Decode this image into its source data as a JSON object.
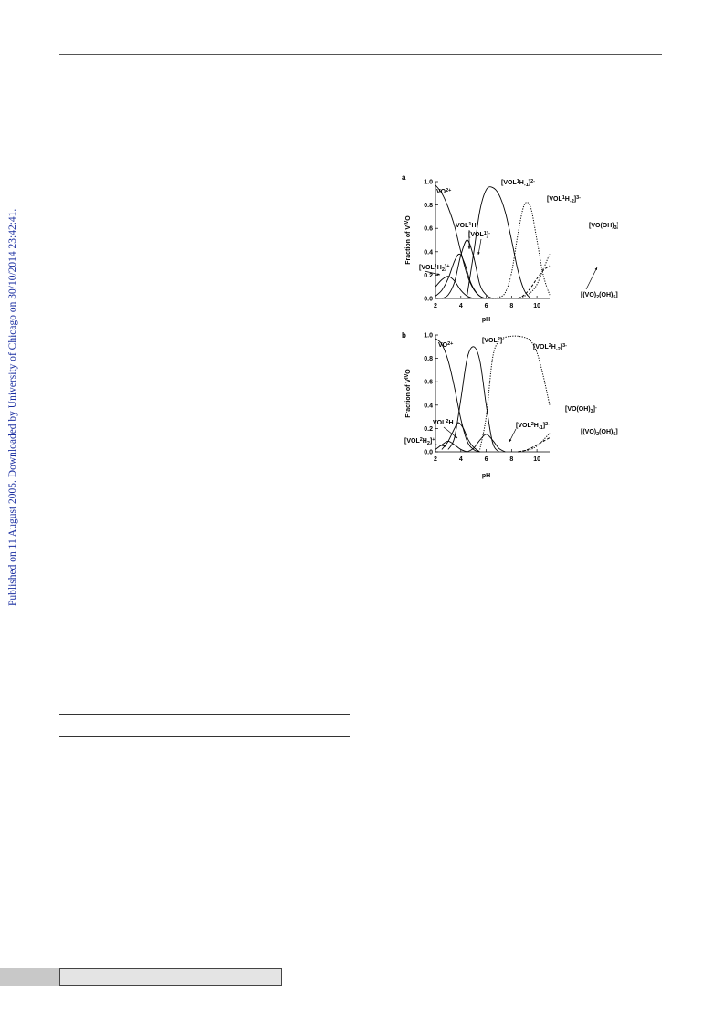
{
  "watermark": "Published on 11 August 2005. Downloaded by University of Chicago on 30/10/2014 23:42:41.",
  "chart_data": [
    {
      "panel": "a",
      "type": "line",
      "xlabel": "pH",
      "ylabel_parts": [
        "Fraction of V",
        "IV",
        "O"
      ],
      "xlim": [
        2,
        11
      ],
      "ylim": [
        0,
        1.0
      ],
      "xticks": [
        "2",
        "4",
        "6",
        "8",
        "10"
      ],
      "yticks": [
        "0.0",
        "0.2",
        "0.4",
        "0.6",
        "0.8",
        "1.0"
      ],
      "series": [
        {
          "name": "VO2+",
          "style": "solid",
          "x": [
            2.0,
            2.5,
            3.0,
            3.5,
            4.0,
            4.5,
            5.0,
            5.5,
            6.0
          ],
          "y": [
            0.97,
            0.9,
            0.78,
            0.62,
            0.4,
            0.2,
            0.08,
            0.02,
            0.0
          ]
        },
        {
          "name": "[VOL1H2]+",
          "style": "solid",
          "x": [
            2.0,
            2.5,
            3.0,
            3.5,
            4.0,
            4.5,
            5.0
          ],
          "y": [
            0.1,
            0.16,
            0.19,
            0.15,
            0.07,
            0.02,
            0.0
          ]
        },
        {
          "name": "VOL1H",
          "style": "solid",
          "x": [
            2.0,
            2.5,
            3.0,
            3.5,
            3.9,
            4.3,
            4.8,
            5.3,
            5.8
          ],
          "y": [
            0.02,
            0.07,
            0.17,
            0.32,
            0.38,
            0.3,
            0.13,
            0.04,
            0.0
          ]
        },
        {
          "name": "[VOL1]-",
          "style": "solid",
          "x": [
            2.5,
            3.0,
            3.5,
            4.0,
            4.5,
            5.0,
            5.5,
            6.0,
            6.5
          ],
          "y": [
            0.0,
            0.03,
            0.14,
            0.37,
            0.5,
            0.36,
            0.12,
            0.03,
            0.0
          ]
        },
        {
          "name": "[VOL1H-1]2-",
          "style": "solid",
          "x": [
            4.5,
            5.0,
            5.5,
            6.0,
            6.5,
            7.0,
            7.5,
            8.0,
            8.5,
            9.0,
            9.5
          ],
          "y": [
            0.03,
            0.38,
            0.75,
            0.93,
            0.95,
            0.89,
            0.74,
            0.5,
            0.24,
            0.07,
            0.0
          ]
        },
        {
          "name": "[VOL1H-2]3-",
          "style": "dotted",
          "x": [
            6.5,
            7.0,
            7.5,
            8.0,
            8.5,
            9.0,
            9.5,
            10.0,
            10.5,
            11.0
          ],
          "y": [
            0.0,
            0.01,
            0.05,
            0.22,
            0.55,
            0.8,
            0.78,
            0.5,
            0.2,
            0.03
          ]
        },
        {
          "name": "[VO(OH)3]-",
          "style": "dotted",
          "x": [
            8.5,
            9.0,
            9.5,
            10.0,
            10.5,
            11.0
          ],
          "y": [
            0.0,
            0.02,
            0.05,
            0.12,
            0.25,
            0.38
          ]
        },
        {
          "name": "[(VO)2(OH)5]-",
          "style": "dashed",
          "x": [
            8.5,
            9.0,
            9.5,
            10.0,
            10.5,
            11.0
          ],
          "y": [
            0.0,
            0.03,
            0.09,
            0.17,
            0.24,
            0.28
          ]
        }
      ],
      "labels": [
        {
          "text": "VO",
          "sup": "2+",
          "sub": ""
        },
        {
          "text": "[VOL",
          "sup": "1",
          "sub": "H",
          "rest": "-1",
          "tail": "]",
          "tailsup": "2-"
        },
        {
          "text": "[VOL",
          "sup": "1",
          "sub": "H",
          "rest": "-2",
          "tail": "]",
          "tailsup": "3-"
        },
        {
          "text": "[VO(OH)",
          "sub": "3",
          "tail": "]",
          "tailsup": "-"
        },
        {
          "text": "VOL",
          "sup": "1",
          "tail": "H"
        },
        {
          "text": "[VOL",
          "sup": "1",
          "tail": "]",
          "tailsup": "-"
        },
        {
          "text": "[VOL",
          "sup": "1",
          "sub": "H",
          "rest": "2",
          "tail": "]",
          "tailsup": "+"
        },
        {
          "text": "[(VO)",
          "sub": "2",
          "tail": "(OH)",
          "sub2": "5",
          "tail2": "]",
          "tailsup": "-"
        }
      ]
    },
    {
      "panel": "b",
      "type": "line",
      "xlabel": "pH",
      "ylabel_parts": [
        "Fraction of V",
        "IV",
        "O"
      ],
      "xlim": [
        2,
        11
      ],
      "ylim": [
        0,
        1.0
      ],
      "xticks": [
        "2",
        "4",
        "6",
        "8",
        "10"
      ],
      "yticks": [
        "0.0",
        "0.2",
        "0.4",
        "0.6",
        "0.8",
        "1.0"
      ],
      "series": [
        {
          "name": "VO2+",
          "style": "solid",
          "x": [
            2.0,
            2.5,
            3.0,
            3.5,
            4.0,
            4.5,
            5.0,
            5.5
          ],
          "y": [
            0.97,
            0.92,
            0.78,
            0.55,
            0.28,
            0.09,
            0.02,
            0.0
          ]
        },
        {
          "name": "[VOL2H2]+",
          "style": "solid",
          "x": [
            2.0,
            2.5,
            3.0,
            3.5,
            4.0,
            4.5
          ],
          "y": [
            0.02,
            0.06,
            0.09,
            0.06,
            0.02,
            0.0
          ]
        },
        {
          "name": "VOL2H",
          "style": "solid",
          "x": [
            2.5,
            3.0,
            3.5,
            3.8,
            4.2,
            4.6,
            5.0,
            5.5
          ],
          "y": [
            0.02,
            0.09,
            0.2,
            0.25,
            0.2,
            0.1,
            0.04,
            0.0
          ]
        },
        {
          "name": "[VOL2]-",
          "style": "solid",
          "x": [
            3.0,
            3.5,
            4.0,
            4.5,
            5.0,
            5.5,
            6.0,
            6.5,
            7.0
          ],
          "y": [
            0.02,
            0.12,
            0.45,
            0.8,
            0.9,
            0.78,
            0.4,
            0.08,
            0.0
          ]
        },
        {
          "name": "[VOL2H-1]2-",
          "style": "solid",
          "x": [
            4.5,
            5.0,
            5.5,
            6.0,
            6.5,
            7.0,
            7.5
          ],
          "y": [
            0.0,
            0.03,
            0.1,
            0.15,
            0.1,
            0.03,
            0.0
          ]
        },
        {
          "name": "[VOL2H-2]3-",
          "style": "dotted",
          "x": [
            5.5,
            6.0,
            6.5,
            7.0,
            7.5,
            8.0,
            8.5,
            9.0,
            9.5,
            10.0,
            10.5,
            11.0
          ],
          "y": [
            0.02,
            0.3,
            0.8,
            0.95,
            0.98,
            0.99,
            0.99,
            0.98,
            0.95,
            0.85,
            0.65,
            0.4
          ]
        },
        {
          "name": "[VO(OH)3]-",
          "style": "dotted",
          "x": [
            8.5,
            9.0,
            9.5,
            10.0,
            10.5,
            11.0
          ],
          "y": [
            0.0,
            0.01,
            0.02,
            0.05,
            0.1,
            0.16
          ]
        },
        {
          "name": "[(VO)2(OH)5]-",
          "style": "dashed",
          "x": [
            8.5,
            9.0,
            9.5,
            10.0,
            10.5,
            11.0
          ],
          "y": [
            0.0,
            0.01,
            0.03,
            0.06,
            0.09,
            0.12
          ]
        }
      ],
      "labels": [
        {
          "text": "VO",
          "sup": "2+",
          "sub": ""
        },
        {
          "text": "[VOL",
          "sup": "2",
          "tail": "]",
          "tailsup": "-"
        },
        {
          "text": "[VOL",
          "sup": "2",
          "sub": "H",
          "rest": "-2",
          "tail": "]",
          "tailsup": "3-"
        },
        {
          "text": "[VO(OH)",
          "sub": "3",
          "tail": "]",
          "tailsup": "-"
        },
        {
          "text": "[(VO)",
          "sub": "2",
          "tail": "(OH)",
          "sub2": "5",
          "tail2": "]",
          "tailsup": "-"
        },
        {
          "text": "VOL",
          "sup": "2",
          "tail": "H"
        },
        {
          "text": "[VOL",
          "sup": "2",
          "sub": "H",
          "rest": "-1",
          "tail": "]",
          "tailsup": "2-"
        },
        {
          "text": "[VOL",
          "sup": "2",
          "sub": "H",
          "rest": "2",
          "tail": "]",
          "tailsup": "+"
        }
      ]
    }
  ]
}
